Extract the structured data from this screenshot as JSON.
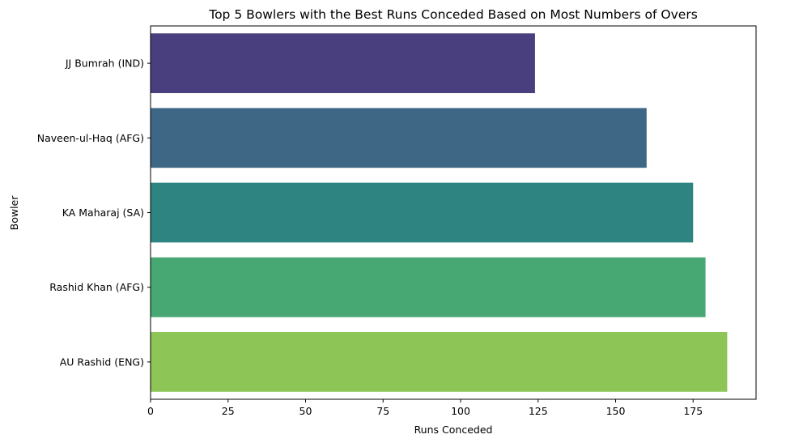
{
  "chart_data": {
    "type": "bar",
    "orientation": "horizontal",
    "title": "Top 5 Bowlers with the Best Runs Conceded Based on Most Numbers of Overs",
    "xlabel": "Runs Conceded",
    "ylabel": "Bowler",
    "categories": [
      "JJ Bumrah (IND)",
      "Naveen-ul-Haq (AFG)",
      "KA Maharaj (SA)",
      "Rashid Khan (AFG)",
      "AU Rashid (ENG)"
    ],
    "values": [
      124,
      160,
      175,
      179,
      186
    ],
    "colors": [
      "#4a3f7e",
      "#3e6786",
      "#2e8480",
      "#47a874",
      "#8dc557"
    ],
    "xlim": [
      0,
      195.3
    ],
    "xticks": [
      0,
      25,
      50,
      75,
      100,
      125,
      150,
      175
    ],
    "grid": false,
    "legend": "none"
  }
}
